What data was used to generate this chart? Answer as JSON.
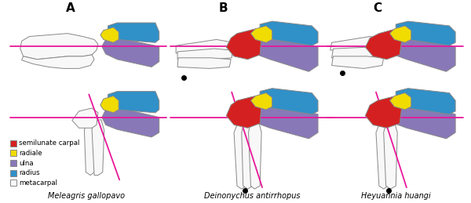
{
  "species": [
    "Meleagris gallopavo",
    "Deinonychus antirrhopus",
    "Heyuannia huangi"
  ],
  "legend_items": [
    {
      "label": "semilunate carpal",
      "color": "#d42020"
    },
    {
      "label": "radiale",
      "color": "#f0dc00"
    },
    {
      "label": "ulna",
      "color": "#8878b8"
    },
    {
      "label": "radius",
      "color": "#3090c8"
    },
    {
      "label": "metacarpal",
      "color": "#f8f8f8"
    }
  ],
  "pink_line_color": "#e8189a",
  "background_color": "#ffffff",
  "figsize": [
    6.0,
    2.59
  ],
  "dpi": 100
}
